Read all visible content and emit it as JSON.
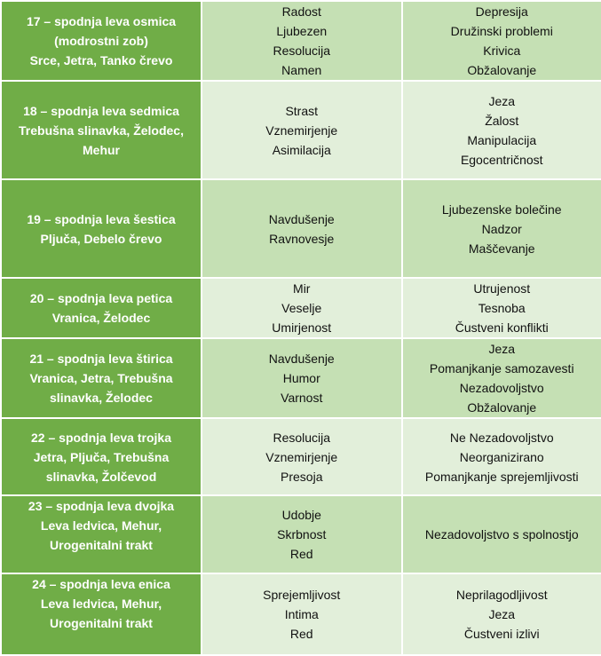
{
  "colors": {
    "header_column": "#70AD47",
    "row_dark": "#C5E0B4",
    "row_light": "#E2EFDA"
  },
  "rows": [
    {
      "tooth": [
        "17 – spodnja leva osmica",
        "(modrostni zob)",
        "Srce, Jetra, Tanko črevo"
      ],
      "positive": [
        "Radost",
        "Ljubezen",
        "Resolucija",
        "Namen"
      ],
      "negative": [
        "Depresija",
        "Družinski problemi",
        "Krivica",
        "Obžalovanje"
      ]
    },
    {
      "tooth": [
        "18 – spodnja leva sedmica",
        "Trebušna slinavka, Želodec,",
        "Mehur"
      ],
      "positive": [
        "Strast",
        "Vznemirjenje",
        "Asimilacija"
      ],
      "negative": [
        "Jeza",
        "Žalost",
        "Manipulacija",
        "Egocentričnost"
      ]
    },
    {
      "tooth": [
        "19 – spodnja leva šestica",
        "Pljuča, Debelo črevo"
      ],
      "positive": [
        "Navdušenje",
        "Ravnovesje"
      ],
      "negative": [
        "Ljubezenske bolečine",
        "Nadzor",
        "Maščevanje"
      ]
    },
    {
      "tooth": [
        "20 – spodnja leva petica",
        "Vranica, Želodec"
      ],
      "positive": [
        "Mir",
        "Veselje",
        "Umirjenost"
      ],
      "negative": [
        "Utrujenost",
        "Tesnoba",
        "Čustveni konflikti"
      ]
    },
    {
      "tooth": [
        "21 – spodnja leva štirica",
        "Vranica, Jetra, Trebušna",
        "slinavka, Želodec"
      ],
      "positive": [
        "Navdušenje",
        "Humor",
        "Varnost"
      ],
      "negative": [
        "Jeza",
        "Pomanjkanje samozavesti",
        "Nezadovoljstvo",
        "Obžalovanje"
      ]
    },
    {
      "tooth": [
        "22 – spodnja leva trojka",
        "Jetra, Pljuča, Trebušna",
        "slinavka, Žolčevod"
      ],
      "positive": [
        "Resolucija",
        "Vznemirjenje",
        "Presoja"
      ],
      "negative": [
        "Ne Nezadovoljstvo",
        "Neorganizirano",
        "Pomanjkanje sprejemljivosti"
      ]
    },
    {
      "tooth": [
        "23 – spodnja leva dvojka",
        "Leva ledvica, Mehur,",
        "Urogenitalni trakt"
      ],
      "positive": [
        "Udobje",
        "Skrbnost",
        "Red"
      ],
      "negative": [
        "Nezadovoljstvo s spolnostjo"
      ]
    },
    {
      "tooth": [
        "24 – spodnja leva enica",
        "Leva ledvica, Mehur,",
        "Urogenitalni trakt"
      ],
      "positive": [
        "Sprejemljivost",
        "Intima",
        "Red"
      ],
      "negative": [
        "Neprilagodljivost",
        "Jeza",
        "Čustveni izlivi"
      ]
    }
  ]
}
